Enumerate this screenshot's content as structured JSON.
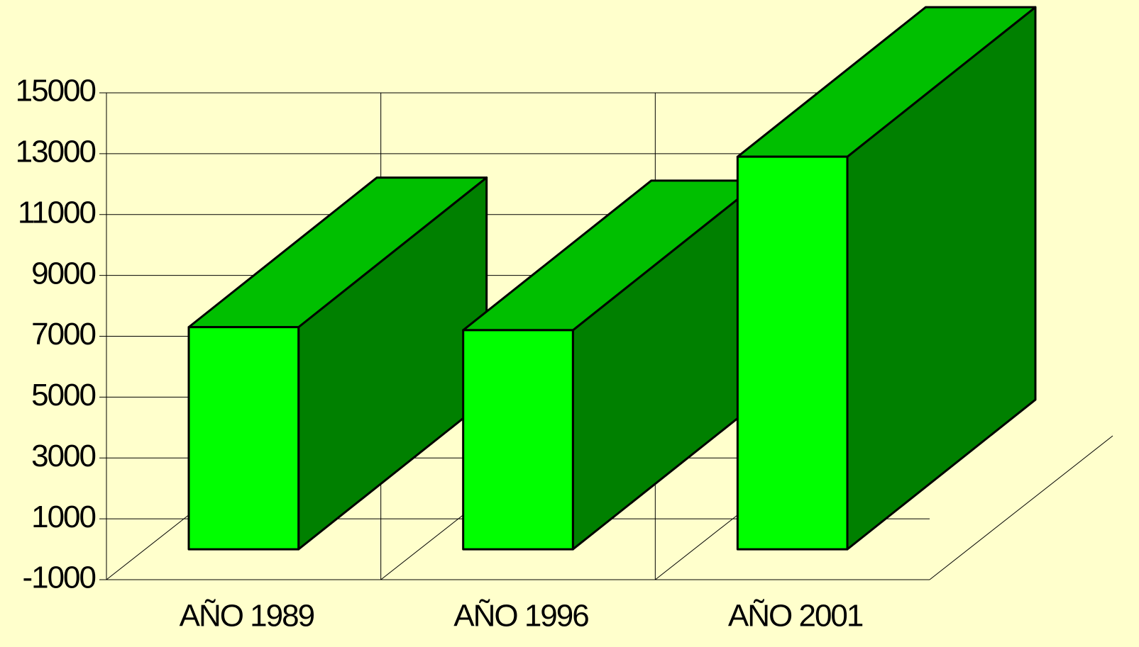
{
  "chart_data": {
    "type": "bar3d",
    "categories": [
      "AÑO 1989",
      "AÑO 1996",
      "AÑO 2001"
    ],
    "values": [
      7300,
      7200,
      12900
    ],
    "color": "#00ff00",
    "ylim": [
      -1000,
      15000
    ],
    "yticks": [
      -1000,
      1000,
      3000,
      5000,
      7000,
      9000,
      11000,
      13000,
      15000
    ],
    "grid": true
  }
}
